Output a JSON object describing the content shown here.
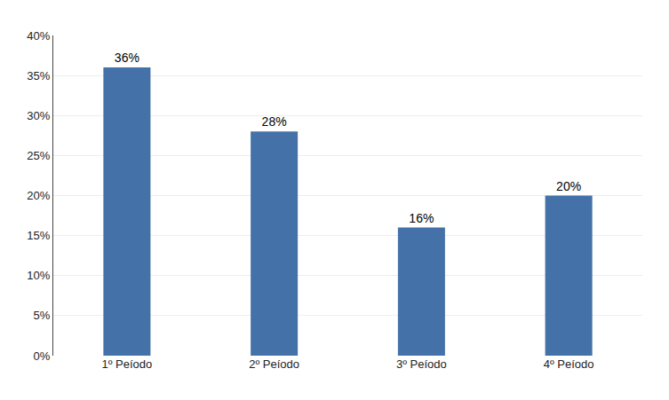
{
  "chart_data": {
    "type": "bar",
    "categories": [
      "1º Peíodo",
      "2º Peíodo",
      "3º Peíodo",
      "4º Peíodo"
    ],
    "values": [
      36,
      28,
      16,
      20
    ],
    "value_labels": [
      "36%",
      "28%",
      "16%",
      "20%"
    ],
    "color": "#4472A8",
    "ylim": [
      0,
      40
    ],
    "yticks": [
      {
        "value": 0,
        "label": "0%"
      },
      {
        "value": 5,
        "label": "5%"
      },
      {
        "value": 10,
        "label": "10%"
      },
      {
        "value": 15,
        "label": "15%"
      },
      {
        "value": 20,
        "label": "20%"
      },
      {
        "value": 25,
        "label": "25%"
      },
      {
        "value": 30,
        "label": "30%"
      },
      {
        "value": 35,
        "label": "35%"
      },
      {
        "value": 40,
        "label": "40%"
      }
    ],
    "grid": true,
    "data_labels": true
  }
}
